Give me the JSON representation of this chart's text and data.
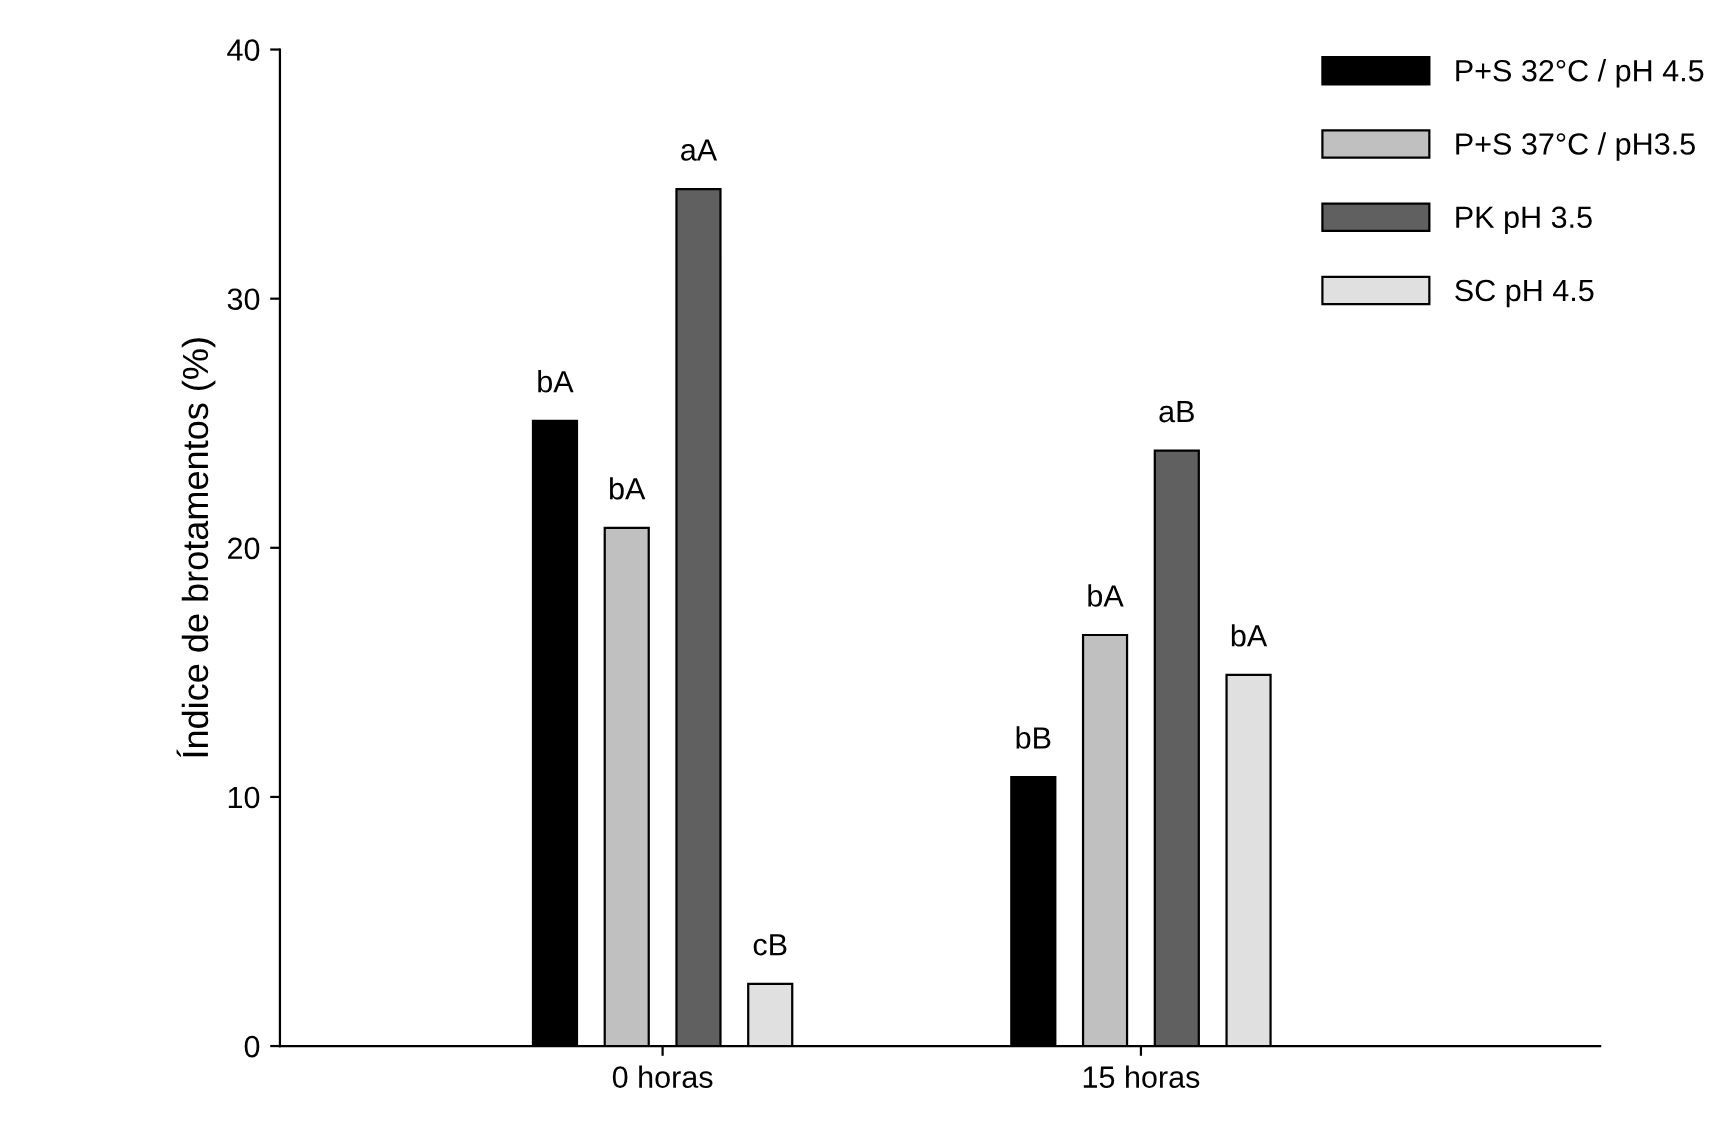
{
  "chart_data": {
    "type": "bar",
    "ylabel": "Índice de brotamentos (%)",
    "categories": [
      "0 horas",
      "15 horas"
    ],
    "ylim": [
      0,
      40
    ],
    "yticks": [
      0,
      10,
      20,
      30,
      40
    ],
    "grid": false,
    "legend": "top right",
    "series": [
      {
        "name": "P+S 32°C / pH 4.5",
        "color": "#000000",
        "values": [
          25.1,
          10.8
        ],
        "value_labels": [
          "bA",
          "bB"
        ]
      },
      {
        "name": "P+S 37°C / pH3.5",
        "color": "#c0c0c0",
        "values": [
          20.8,
          16.5
        ],
        "value_labels": [
          "bA",
          "bA"
        ]
      },
      {
        "name": "PK pH 3.5",
        "color": "#606060",
        "values": [
          34.4,
          23.9
        ],
        "value_labels": [
          "aA",
          "aB"
        ]
      },
      {
        "name": "SC pH 4.5",
        "color": "#e0e0e0",
        "values": [
          2.5,
          14.9
        ],
        "value_labels": [
          "cB",
          "bA"
        ]
      }
    ]
  }
}
